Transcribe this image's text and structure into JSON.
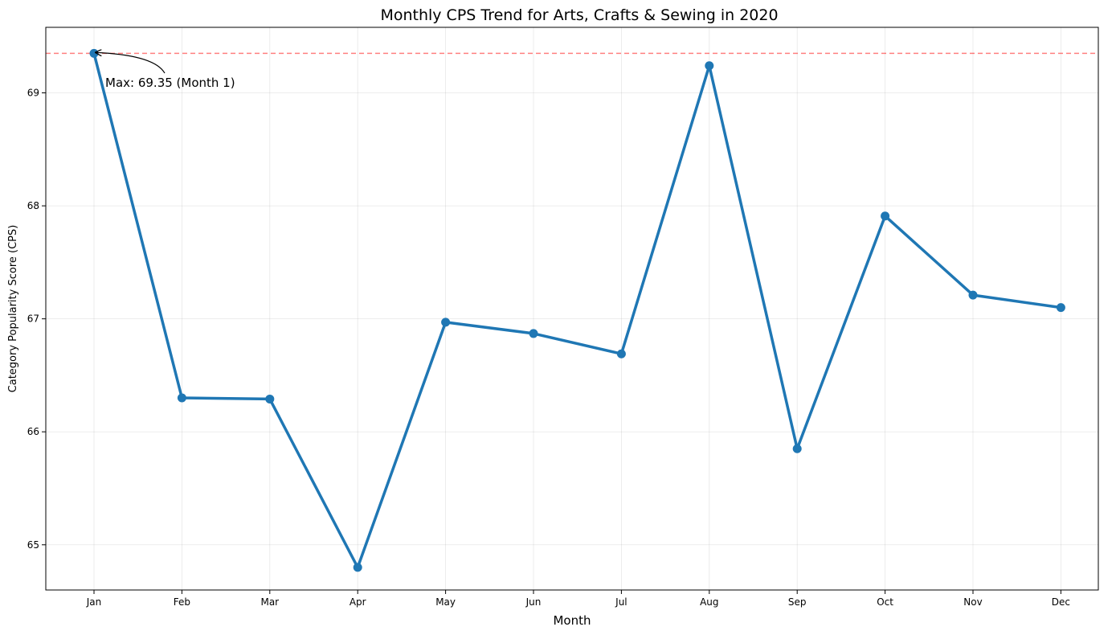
{
  "chart_data": {
    "type": "line",
    "title": "Monthly CPS Trend for Arts, Crafts & Sewing in 2020",
    "xlabel": "Month",
    "ylabel": "Category Popularity Score (CPS)",
    "categories": [
      "Jan",
      "Feb",
      "Mar",
      "Apr",
      "May",
      "Jun",
      "Jul",
      "Aug",
      "Sep",
      "Oct",
      "Nov",
      "Dec"
    ],
    "series": [
      {
        "values": [
          69.35,
          66.3,
          66.29,
          64.8,
          66.97,
          66.87,
          66.69,
          69.24,
          65.85,
          67.91,
          67.21,
          67.1
        ],
        "color": "#1f77b4"
      }
    ],
    "ylim": [
      64.6,
      69.58
    ],
    "yticks": [
      65,
      66,
      67,
      68,
      69
    ],
    "grid": true,
    "reference_line": {
      "value": 69.35,
      "color": "#ff0000",
      "style": "dashed"
    },
    "annotation": {
      "text": "Max: 69.35 (Month 1)",
      "category": "Jan",
      "value": 69.35
    }
  }
}
